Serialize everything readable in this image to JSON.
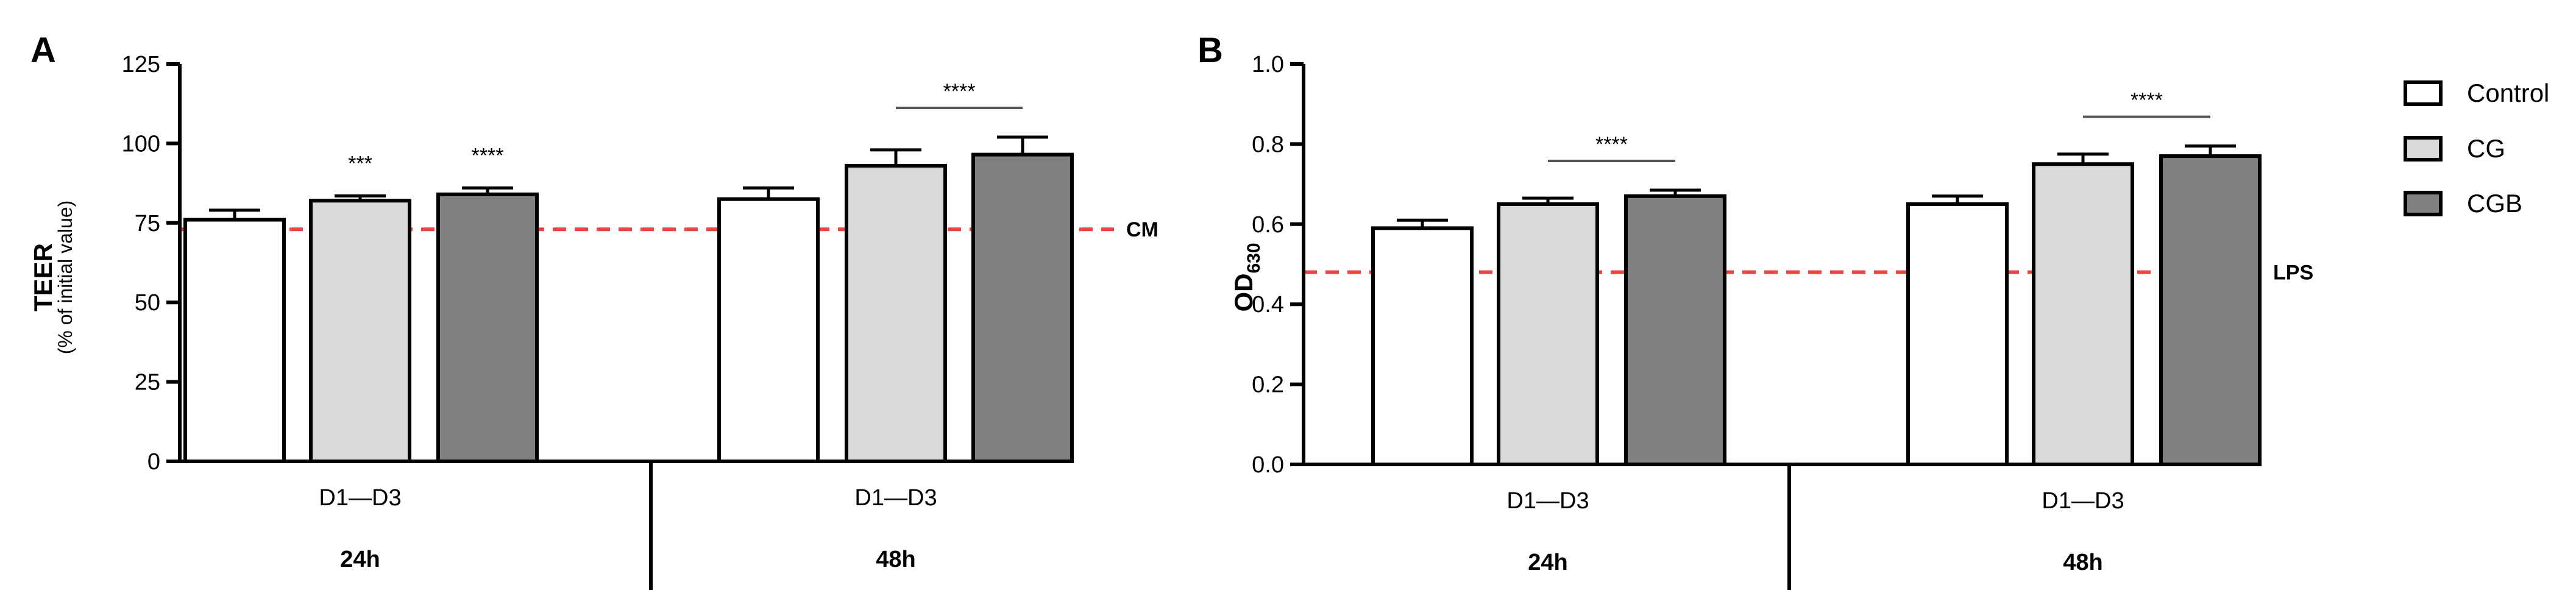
{
  "colors": {
    "control": "#ffffff",
    "cg": "#d9d9d9",
    "cgb": "#808080",
    "reference_line": "#ef4444",
    "axis": "#000000"
  },
  "legend": {
    "items": [
      {
        "label": "Control",
        "color": "#ffffff"
      },
      {
        "label": "CG",
        "color": "#d9d9d9"
      },
      {
        "label": "CGB",
        "color": "#808080"
      }
    ]
  },
  "chart_data": [
    {
      "type": "bar",
      "panel_label": "A",
      "ylabel": "TEER",
      "ylabel_sub": "(% of initial value)",
      "ylim": [
        0,
        125
      ],
      "yticks": [
        "0",
        "25",
        "50",
        "75",
        "100",
        "125"
      ],
      "ytick_values": [
        0,
        25,
        50,
        75,
        100,
        125
      ],
      "groups": [
        {
          "x_label": "D1—D3",
          "time_label": "24h"
        },
        {
          "x_label": "D1—D3",
          "time_label": "48h"
        }
      ],
      "series": [
        {
          "name": "Control",
          "values": [
            76,
            82.5
          ],
          "errors": [
            3,
            3.5
          ]
        },
        {
          "name": "CG",
          "values": [
            82,
            93
          ],
          "errors": [
            1.5,
            5
          ]
        },
        {
          "name": "CGB",
          "values": [
            84,
            96.5
          ],
          "errors": [
            2,
            5.5
          ]
        }
      ],
      "reference_line": {
        "value": 73,
        "label": "CM"
      },
      "significance": [
        {
          "text": "***",
          "group": 0,
          "series": 1
        },
        {
          "text": "****",
          "group": 0,
          "series": 2
        },
        {
          "text": "****",
          "group": 1,
          "series_span": [
            1,
            2
          ]
        }
      ]
    },
    {
      "type": "bar",
      "panel_label": "B",
      "ylabel": "OD",
      "ylabel_sub": "630",
      "ylim": [
        0,
        1.0
      ],
      "yticks": [
        "0.0",
        "0.2",
        "0.4",
        "0.6",
        "0.8",
        "1.0"
      ],
      "ytick_values": [
        0,
        0.2,
        0.4,
        0.6,
        0.8,
        1.0
      ],
      "groups": [
        {
          "x_label": "D1—D3",
          "time_label": "24h"
        },
        {
          "x_label": "D1—D3",
          "time_label": "48h"
        }
      ],
      "series": [
        {
          "name": "Control",
          "values": [
            0.59,
            0.65
          ],
          "errors": [
            0.02,
            0.02
          ]
        },
        {
          "name": "CG",
          "values": [
            0.65,
            0.75
          ],
          "errors": [
            0.015,
            0.025
          ]
        },
        {
          "name": "CGB",
          "values": [
            0.67,
            0.77
          ],
          "errors": [
            0.015,
            0.025
          ]
        }
      ],
      "reference_line": {
        "value": 0.48,
        "label": "LPS"
      },
      "significance": [
        {
          "text": "****",
          "group": 0,
          "series_span": [
            1,
            2
          ]
        },
        {
          "text": "****",
          "group": 1,
          "series_span": [
            1,
            2
          ]
        }
      ]
    }
  ]
}
